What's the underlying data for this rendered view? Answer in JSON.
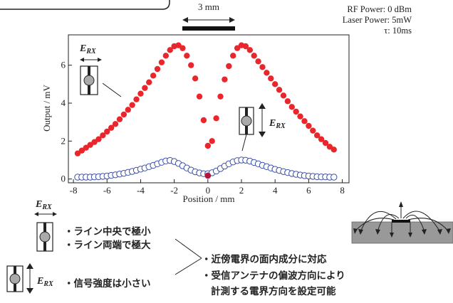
{
  "params": {
    "rf_power": "RF Power: 0 dBm",
    "laser_power": "Laser Power: 5mW",
    "tau": "τ: 10ms"
  },
  "scale_bar": {
    "label": "3 mm"
  },
  "field_label": {
    "main": "E",
    "sub": "RX"
  },
  "notes": {
    "center_min": "・ライン中央で極小",
    "edge_max": "・ライン両端で極大",
    "signal_small": "・信号強度は小さい",
    "in_plane": "・近傍電界の面内成分に対応",
    "polarization": "・受信アンテナの偏波方向により",
    "settable": "計測する電界方向を設定可能"
  },
  "colors": {
    "series_in_plane": "#e8262b",
    "series_vertical": "#3a4fa8"
  },
  "chart_data": {
    "type": "scatter",
    "xlabel": "Position / mm",
    "ylabel": "Output / mV",
    "xlim": [
      -8.3,
      8.4
    ],
    "ylim": [
      -0.2,
      7.6
    ],
    "xticks": [
      "-8",
      "-6",
      "-4",
      "-2",
      "0",
      "2",
      "4",
      "6",
      "8"
    ],
    "yticks": [
      "0",
      "2",
      "4",
      "6"
    ],
    "series": [
      {
        "marker": "filled-circle",
        "x": [
          -7.75,
          -7.5,
          -7.25,
          -7.0,
          -6.75,
          -6.5,
          -6.25,
          -6.0,
          -5.75,
          -5.5,
          -5.25,
          -5.0,
          -4.75,
          -4.5,
          -4.25,
          -4.0,
          -3.75,
          -3.5,
          -3.25,
          -3.0,
          -2.75,
          -2.5,
          -2.25,
          -2.0,
          -1.75,
          -1.5,
          -1.25,
          -1.0,
          -0.75,
          -0.5,
          -0.25,
          0.0,
          0.25,
          0.5,
          0.75,
          1.0,
          1.25,
          1.5,
          1.75,
          2.0,
          2.25,
          2.5,
          2.75,
          3.0,
          3.25,
          3.5,
          3.75,
          4.0,
          4.25,
          4.5,
          4.75,
          5.0,
          5.25,
          5.5,
          5.75,
          6.0,
          6.25,
          6.5,
          6.75,
          7.0,
          7.25,
          7.5
        ],
        "y": [
          1.35,
          1.5,
          1.65,
          1.8,
          1.95,
          2.1,
          2.3,
          2.5,
          2.7,
          2.9,
          3.15,
          3.4,
          3.65,
          3.9,
          4.2,
          4.5,
          4.8,
          5.1,
          5.45,
          5.8,
          6.15,
          6.5,
          6.8,
          7.0,
          7.05,
          6.9,
          6.5,
          6.0,
          5.3,
          4.35,
          3.1,
          1.75,
          2.0,
          3.2,
          4.35,
          5.25,
          5.95,
          6.5,
          6.9,
          7.05,
          7.0,
          6.8,
          6.5,
          6.2,
          5.9,
          5.6,
          5.3,
          5.0,
          4.7,
          4.4,
          4.1,
          3.8,
          3.55,
          3.3,
          3.05,
          2.8,
          2.55,
          2.3,
          2.1,
          1.9,
          1.7,
          1.55
        ]
      },
      {
        "marker": "open-circle",
        "x": [
          -7.75,
          -7.5,
          -7.25,
          -7.0,
          -6.75,
          -6.5,
          -6.25,
          -6.0,
          -5.75,
          -5.5,
          -5.25,
          -5.0,
          -4.75,
          -4.5,
          -4.25,
          -4.0,
          -3.75,
          -3.5,
          -3.25,
          -3.0,
          -2.75,
          -2.5,
          -2.25,
          -2.0,
          -1.75,
          -1.5,
          -1.25,
          -1.0,
          -0.75,
          -0.5,
          -0.25,
          0.0,
          0.25,
          0.5,
          0.75,
          1.0,
          1.25,
          1.5,
          1.75,
          2.0,
          2.25,
          2.5,
          2.75,
          3.0,
          3.25,
          3.5,
          3.75,
          4.0,
          4.25,
          4.5,
          4.75,
          5.0,
          5.25,
          5.5,
          5.75,
          6.0,
          6.25,
          6.5,
          6.75,
          7.0,
          7.25,
          7.5
        ],
        "y": [
          0.1,
          0.1,
          0.1,
          0.1,
          0.11,
          0.12,
          0.14,
          0.16,
          0.19,
          0.22,
          0.26,
          0.3,
          0.35,
          0.4,
          0.46,
          0.52,
          0.58,
          0.65,
          0.72,
          0.8,
          0.88,
          0.95,
          0.98,
          0.92,
          0.82,
          0.7,
          0.58,
          0.47,
          0.38,
          0.32,
          0.28,
          0.28,
          0.33,
          0.42,
          0.55,
          0.68,
          0.8,
          0.9,
          0.97,
          1.0,
          0.99,
          0.94,
          0.87,
          0.8,
          0.72,
          0.65,
          0.58,
          0.51,
          0.45,
          0.39,
          0.34,
          0.29,
          0.25,
          0.21,
          0.18,
          0.16,
          0.14,
          0.12,
          0.11,
          0.11,
          0.1,
          0.1
        ]
      }
    ],
    "highlight_point": {
      "x": 0.0,
      "y": 0.18
    }
  }
}
